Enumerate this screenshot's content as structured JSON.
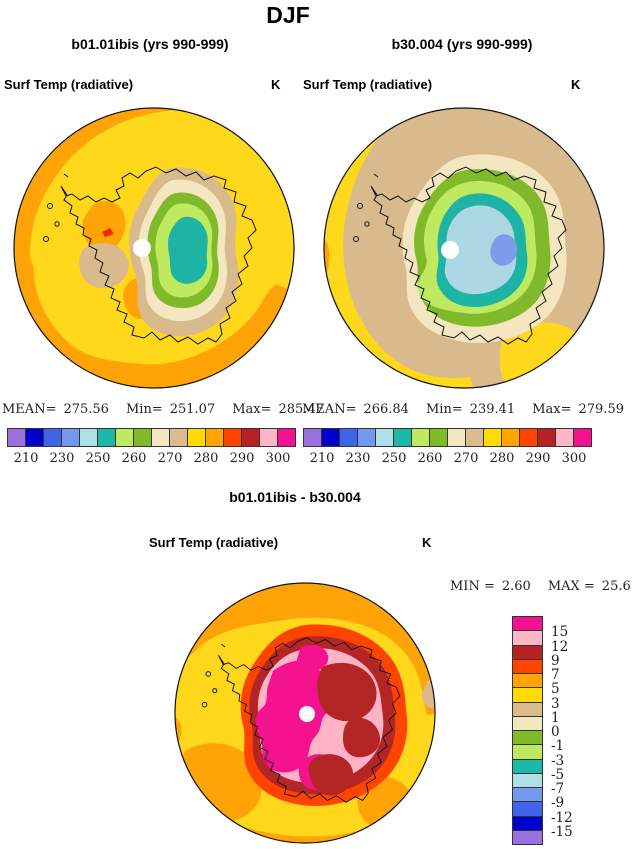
{
  "page_title": "DJF",
  "panels": [
    {
      "subtitle": "b01.01ibis (yrs 990-999)",
      "field_label": "Surf Temp (radiative)",
      "units": "K",
      "stats": {
        "mean_label": "MEAN=",
        "mean": "275.56",
        "min_label": "Min=",
        "min": "251.07",
        "max_label": "Max=",
        "max": "285.47"
      }
    },
    {
      "subtitle": "b30.004 (yrs 990-999)",
      "field_label": "Surf Temp (radiative)",
      "units": "K",
      "stats": {
        "mean_label": "MEAN=",
        "mean": "266.84",
        "min_label": "Min=",
        "min": "239.41",
        "max_label": "Max=",
        "max": "279.59"
      }
    }
  ],
  "temp_colorbar": {
    "colors": [
      "#9a70dc",
      "#0000cd",
      "#3f64e6",
      "#7399ee",
      "#aee0e6",
      "#1cb8a8",
      "#bfe960",
      "#7fbb26",
      "#f3e6c0",
      "#d9bb8e",
      "#ffdc00",
      "#ffa400",
      "#ff4400",
      "#b52222",
      "#ffb5c5",
      "#f5128f"
    ],
    "tick_labels": [
      "210",
      "230",
      "250",
      "260",
      "270",
      "280",
      "290",
      "300"
    ]
  },
  "diff_panel": {
    "title": "b01.01ibis - b30.004",
    "field_label": "Surf Temp (radiative)",
    "units": "K",
    "stats": {
      "min_label": "MIN =",
      "min": "2.60",
      "max_label": "MAX =",
      "max": "25.61"
    },
    "colorbar": {
      "colors": [
        "#f5128f",
        "#ffb5c5",
        "#b52222",
        "#ff4400",
        "#ffa400",
        "#ffdc00",
        "#d9bb8e",
        "#f3e6c0",
        "#7fbb26",
        "#bfe960",
        "#1cb8a8",
        "#aee0e6",
        "#7399ee",
        "#3f64e6",
        "#0000cd",
        "#9a70dc"
      ],
      "tick_labels": [
        "15",
        "12",
        "9",
        "7",
        "5",
        "3",
        "1",
        "0",
        "-1",
        "-3",
        "-5",
        "-7",
        "-9",
        "-12",
        "-15"
      ]
    }
  },
  "map_colors": {
    "yellow": "#ffd81b",
    "orange": "#ffa307",
    "orangered": "#ff4400",
    "redmark": "#ee2b00",
    "darkred": "#b42525",
    "pink": "#ffb3c4",
    "magenta": "#f5128f",
    "tan": "#d9ba8d",
    "cream": "#f3e6c1",
    "olive": "#80ba2b",
    "lightgreen": "#bfe95f",
    "teal": "#1db4a5",
    "paleblue": "#aed7e6",
    "cornflower": "#7b9ce9",
    "white": "#ffffff",
    "coast": "#111111"
  },
  "chart_data": [
    {
      "type": "heatmap",
      "projection": "south-polar-stereographic",
      "season": "DJF",
      "title": "b01.01ibis (yrs 990-999)",
      "variable": "Surf Temp (radiative)",
      "units": "K",
      "stats": {
        "mean": 275.56,
        "min": 251.07,
        "max": 285.47
      },
      "labeled_contour_levels": [
        210,
        230,
        250,
        260,
        270,
        280,
        290,
        300
      ],
      "legend_position": "bottom"
    },
    {
      "type": "heatmap",
      "projection": "south-polar-stereographic",
      "season": "DJF",
      "title": "b30.004 (yrs 990-999)",
      "variable": "Surf Temp (radiative)",
      "units": "K",
      "stats": {
        "mean": 266.84,
        "min": 239.41,
        "max": 279.59
      },
      "labeled_contour_levels": [
        210,
        230,
        250,
        260,
        270,
        280,
        290,
        300
      ],
      "legend_position": "bottom"
    },
    {
      "type": "heatmap",
      "projection": "south-polar-stereographic",
      "season": "DJF",
      "title": "b01.01ibis - b30.004",
      "variable": "Surf Temp (radiative)",
      "units": "K",
      "stats": {
        "min": 2.6,
        "max": 25.61
      },
      "labeled_contour_levels": [
        15,
        12,
        9,
        7,
        5,
        3,
        1,
        0,
        -1,
        -3,
        -5,
        -7,
        -9,
        -12,
        -15
      ],
      "legend_position": "right"
    }
  ]
}
